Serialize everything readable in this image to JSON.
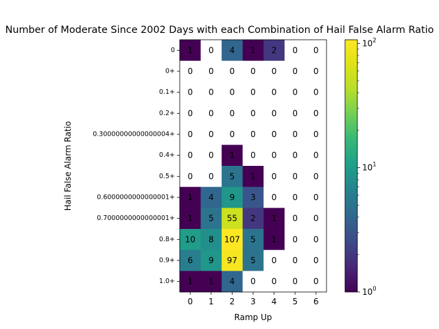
{
  "chart_data": {
    "type": "heatmap",
    "title": "Number of Moderate Since 2002 Days with each Combination of Hail False Alarm Ratio",
    "xlabel": "Ramp Up",
    "ylabel": "Hail False Alarm Ratio",
    "x_categories": [
      "0",
      "1",
      "2",
      "3",
      "4",
      "5",
      "6"
    ],
    "y_categories": [
      "0",
      "0+",
      "0.1+",
      "0.2+",
      "0.30000000000000004+",
      "0.4+",
      "0.5+",
      "0.6000000000000001+",
      "0.7000000000000001+",
      "0.8+",
      "0.9+",
      "1.0+"
    ],
    "values": [
      [
        1,
        0,
        4,
        1,
        2,
        0,
        0
      ],
      [
        0,
        0,
        0,
        0,
        0,
        0,
        0
      ],
      [
        0,
        0,
        0,
        0,
        0,
        0,
        0
      ],
      [
        0,
        0,
        0,
        0,
        0,
        0,
        0
      ],
      [
        0,
        0,
        0,
        0,
        0,
        0,
        0
      ],
      [
        0,
        0,
        1,
        0,
        0,
        0,
        0
      ],
      [
        0,
        0,
        5,
        1,
        0,
        0,
        0
      ],
      [
        1,
        4,
        9,
        3,
        0,
        0,
        0
      ],
      [
        1,
        5,
        55,
        2,
        1,
        0,
        0
      ],
      [
        10,
        8,
        107,
        5,
        1,
        0,
        0
      ],
      [
        6,
        9,
        97,
        5,
        0,
        0,
        0
      ],
      [
        1,
        1,
        4,
        0,
        0,
        0,
        0
      ]
    ],
    "color_scale": "log",
    "colormap": "viridis",
    "zero_color": "#ffffff",
    "colorbar": {
      "min": 1,
      "max": 107,
      "ticks": [
        {
          "value": 1,
          "base": "10",
          "exp": "0"
        },
        {
          "value": 10,
          "base": "10",
          "exp": "1"
        },
        {
          "value": 100,
          "base": "10",
          "exp": "2"
        }
      ]
    }
  }
}
